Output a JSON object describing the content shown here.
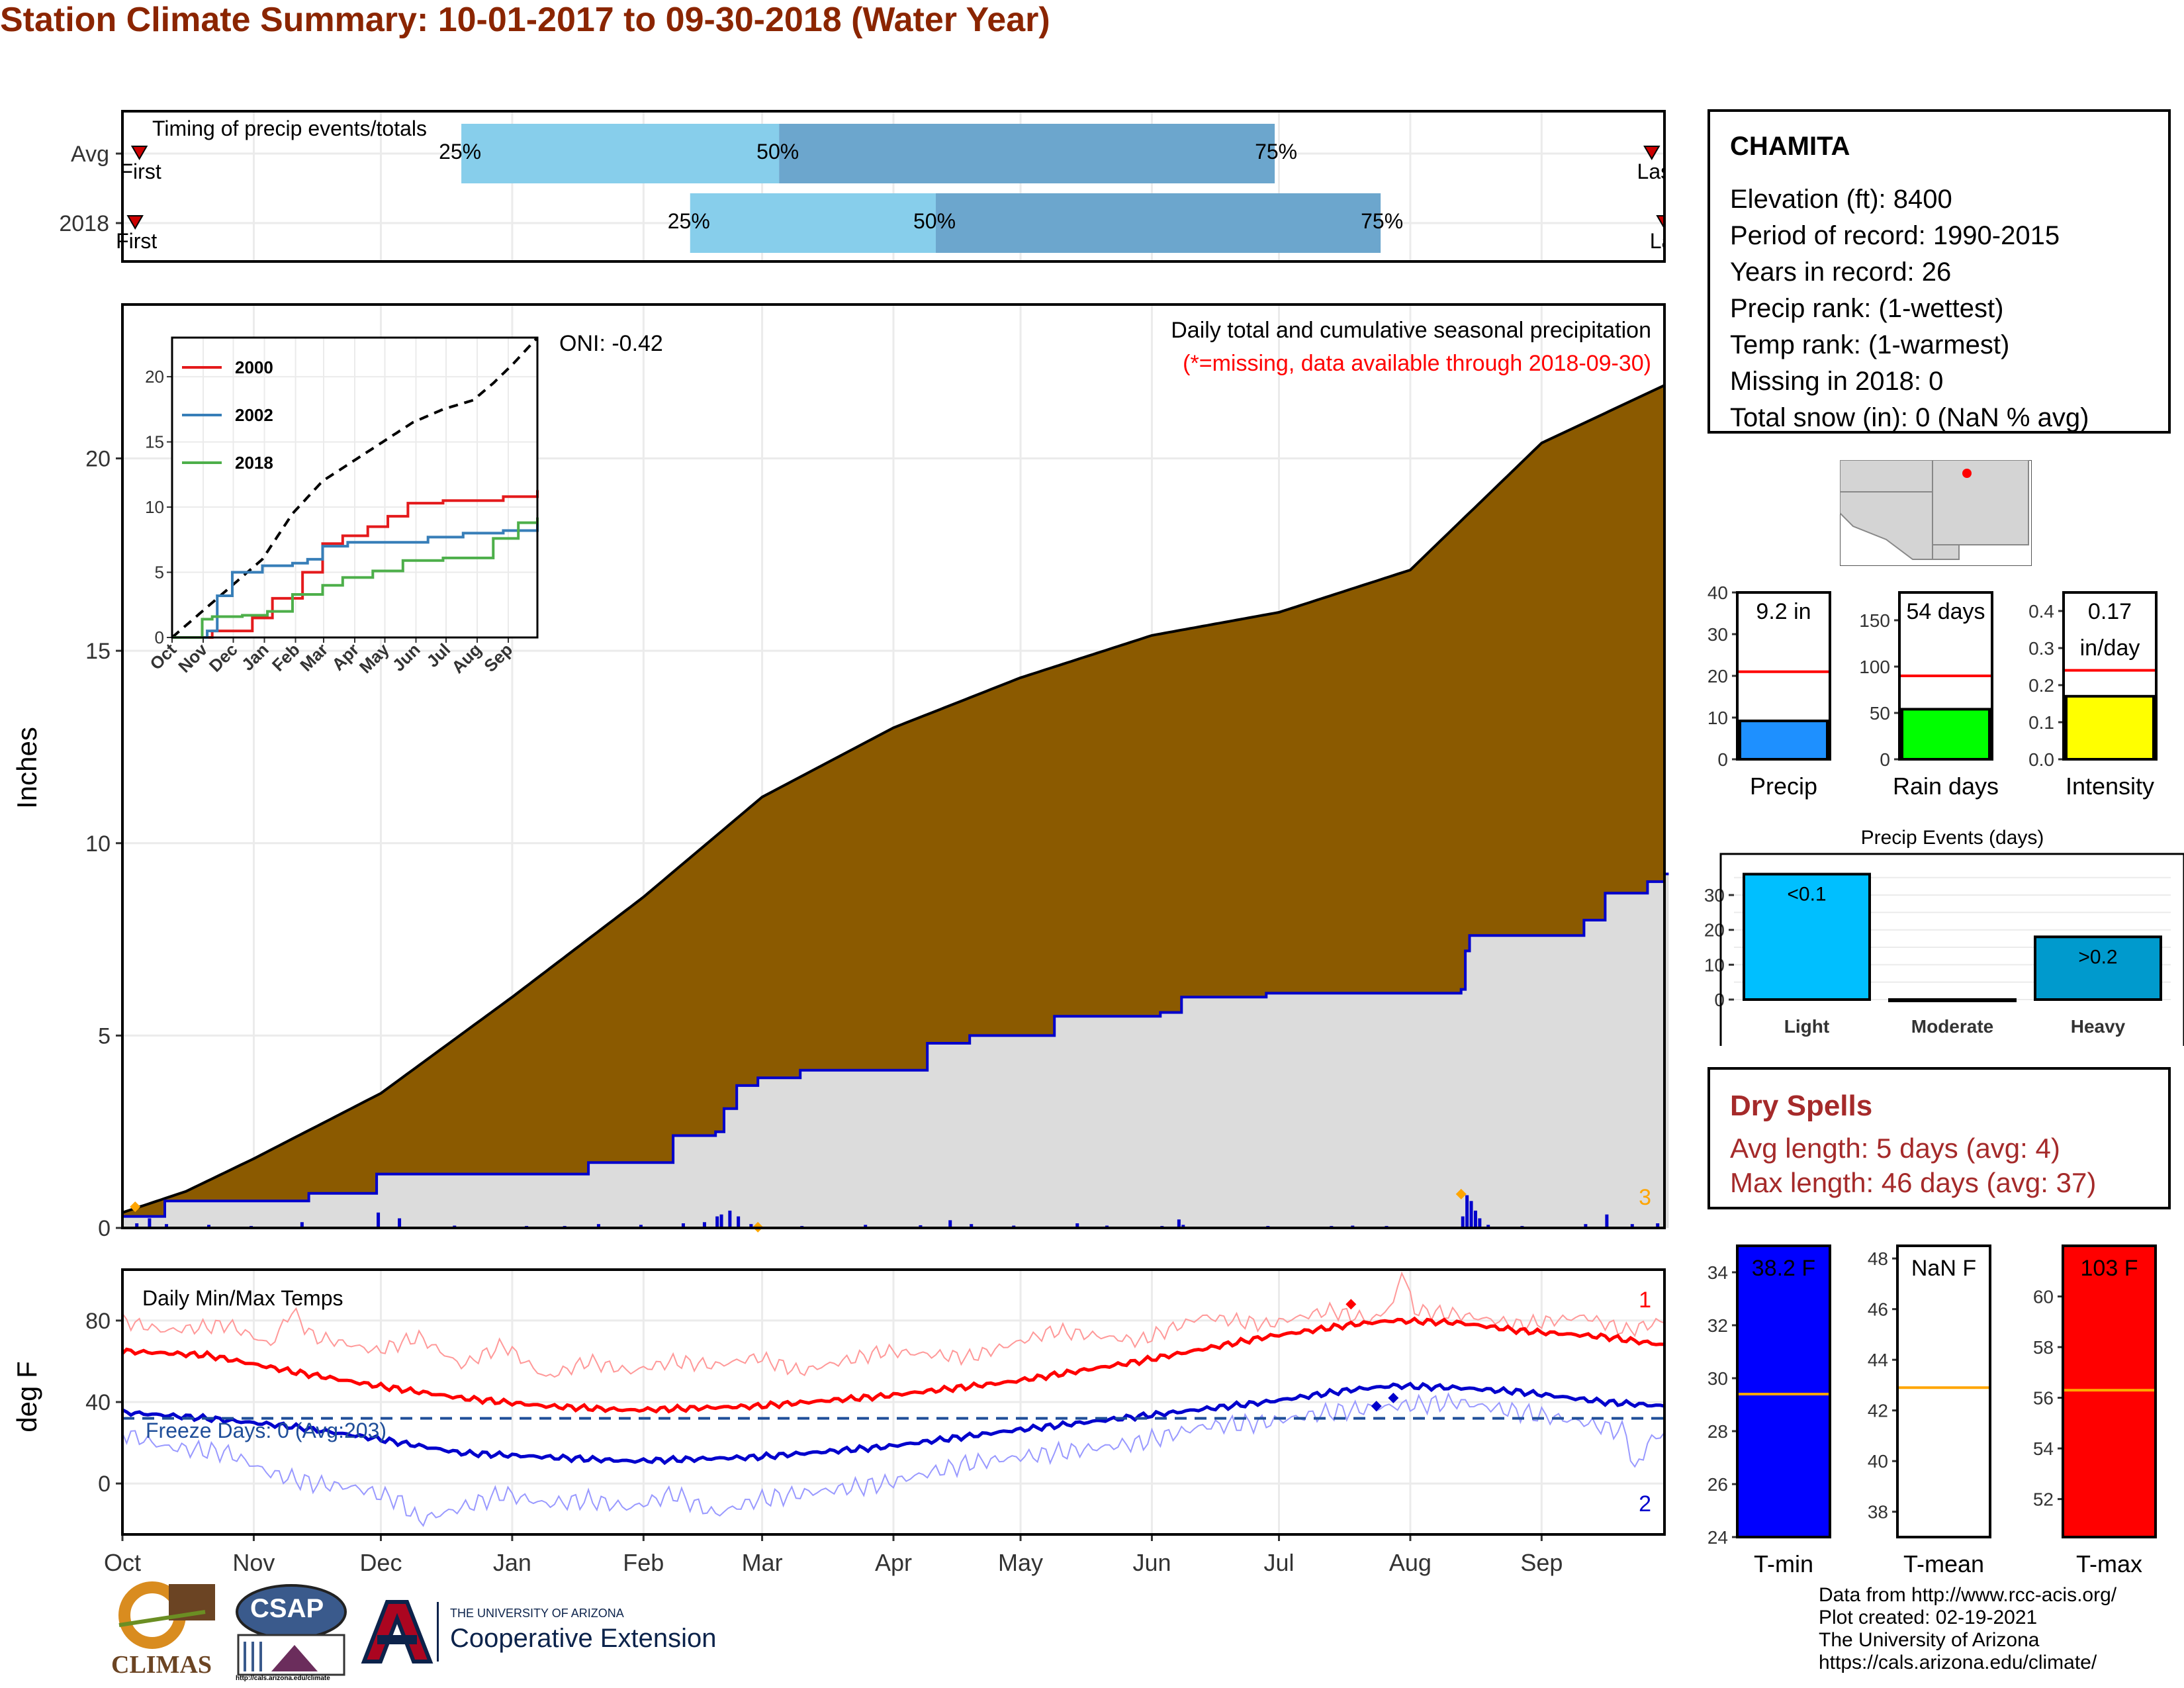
{
  "title": "Station Climate Summary: 10-01-2017 to 09-30-2018 (Water Year)",
  "months": [
    "Oct",
    "Nov",
    "Dec",
    "Jan",
    "Feb",
    "Mar",
    "Apr",
    "May",
    "Jun",
    "Jul",
    "Aug",
    "Sep"
  ],
  "timing": {
    "title": "Timing of precip events/totals",
    "rows": [
      {
        "label": "Avg",
        "first_label": "First",
        "last_label": "Last",
        "first_day": 4,
        "last_day": 361,
        "q25": 80,
        "q50": 155,
        "q75": 272
      },
      {
        "label": "2018",
        "first_label": "First",
        "last_label": "Last",
        "first_day": 3,
        "last_day": 364,
        "q25": 134,
        "q50": 192,
        "q75": 297
      }
    ],
    "q25_label": "25%",
    "q50_label": "50%",
    "q75_label": "75%",
    "colors": {
      "light": "#87CEEB",
      "dark": "#6CA6CD",
      "marker": "#CC0000"
    }
  },
  "station": {
    "name": "CHAMITA",
    "lines": [
      "Elevation (ft): 8400",
      "Period of record: 1990-2015",
      "Years in record: 26",
      "Precip rank:  (1-wettest)",
      "Temp rank:  (1-warmest)",
      "Missing in 2018: 0",
      "Total snow (in): 0 (NaN % avg)"
    ]
  },
  "dry_spells": {
    "title": "Dry Spells",
    "avg_line": "Avg length: 5 days (avg: 4)",
    "max_line": "Max length: 46 days (avg: 37)",
    "color": "#A52A2A"
  },
  "footer": {
    "lines": [
      "Data from http://www.rcc-acis.org/",
      "Plot created: 02-19-2021",
      "The University of Arizona",
      "https://cals.arizona.edu/climate/"
    ]
  },
  "logos": {
    "climas": "CLIMAS",
    "csap": "CSAP",
    "csap_url": "http://cals.arizona.edu/climate",
    "ua_small": "THE UNIVERSITY OF ARIZONA",
    "ua_big": "Cooperative Extension"
  },
  "chart_data": [
    {
      "id": "precip",
      "type": "area",
      "title": "Daily total and cumulative seasonal precipitation",
      "subtitle": "(*=missing, data available through 2018-09-30)",
      "oni": "ONI: -0.42",
      "ylabel": "Inches",
      "ylim": [
        0,
        24
      ],
      "yticks": [
        0,
        5,
        10,
        15,
        20
      ],
      "corner_label": "3",
      "colors": {
        "avg_fill": "#8B5A00",
        "obs_fill": "#DCDCDC",
        "obs_line": "#0000CC",
        "daily": "#0000CC",
        "marker": "#FFA500"
      },
      "avg_cum": {
        "day": [
          0,
          15,
          31,
          61,
          92,
          123,
          151,
          182,
          212,
          243,
          273,
          304,
          335,
          364
        ],
        "value": [
          0.4,
          0.95,
          1.8,
          3.5,
          6.0,
          8.6,
          11.2,
          13.0,
          14.3,
          15.4,
          16.0,
          17.1,
          20.4,
          21.9
        ]
      },
      "obs_cum": {
        "day": [
          0,
          10,
          20,
          30,
          44,
          60,
          110,
          130,
          140,
          142,
          145,
          150,
          160,
          190,
          200,
          220,
          245,
          250,
          270,
          290,
          305,
          316,
          317,
          318,
          330,
          345,
          350,
          360,
          364
        ],
        "value": [
          0.3,
          0.7,
          0.7,
          0.7,
          0.9,
          1.4,
          1.7,
          2.4,
          2.5,
          3.1,
          3.7,
          3.9,
          4.1,
          4.8,
          5.0,
          5.5,
          5.6,
          6.0,
          6.1,
          6.1,
          6.1,
          6.2,
          7.2,
          7.6,
          7.6,
          8.0,
          8.7,
          9.0,
          9.2
        ]
      },
      "daily": {
        "day": [
          3,
          6,
          10,
          20,
          30,
          42,
          60,
          65,
          78,
          95,
          104,
          112,
          122,
          132,
          137,
          140,
          141,
          143,
          145,
          148,
          160,
          175,
          188,
          195,
          200,
          210,
          225,
          232,
          245,
          249,
          250,
          270,
          285,
          290,
          298,
          316,
          317,
          318,
          319,
          320,
          322,
          330,
          345,
          350,
          356,
          362
        ],
        "value": [
          0.12,
          0.25,
          0.1,
          0.08,
          0.05,
          0.15,
          0.4,
          0.25,
          0.06,
          0.05,
          0.05,
          0.1,
          0.08,
          0.12,
          0.15,
          0.3,
          0.35,
          0.45,
          0.3,
          0.1,
          0.05,
          0.08,
          0.07,
          0.2,
          0.1,
          0.06,
          0.12,
          0.06,
          0.05,
          0.22,
          0.08,
          0.05,
          0.05,
          0.06,
          0.05,
          0.3,
          0.85,
          0.7,
          0.45,
          0.25,
          0.08,
          0.05,
          0.1,
          0.35,
          0.1,
          0.12
        ]
      },
      "markers": [
        {
          "day": 3,
          "value": 0.55
        },
        {
          "day": 150,
          "value": 0.02
        },
        {
          "day": 316,
          "value": 0.88
        }
      ],
      "inset": {
        "type": "line",
        "ylim": [
          0,
          23
        ],
        "yticks": [
          0,
          5,
          10,
          15,
          20
        ],
        "series": [
          {
            "name": "2000",
            "color": "#E41A1C",
            "day": [
              0,
              40,
              80,
              100,
              130,
              150,
              170,
              195,
              215,
              235,
              270,
              305,
              330,
              364
            ],
            "value": [
              0,
              0.5,
              1.5,
              3,
              5,
              7.2,
              7.8,
              8.5,
              9.3,
              10.3,
              10.5,
              10.5,
              10.8,
              11.3
            ]
          },
          {
            "name": "2002",
            "color": "#377EB8",
            "day": [
              0,
              35,
              45,
              60,
              90,
              120,
              135,
              150,
              175,
              205,
              255,
              290,
              330,
              364
            ],
            "value": [
              0,
              0.5,
              3.2,
              5.0,
              5.5,
              5.7,
              6.0,
              7.0,
              7.3,
              7.3,
              7.7,
              8.0,
              8.2,
              9.0
            ]
          },
          {
            "name": "2018",
            "color": "#4DAF4A",
            "day": [
              0,
              30,
              40,
              70,
              95,
              120,
              150,
              170,
              200,
              230,
              270,
              320,
              345,
              364
            ],
            "value": [
              0,
              1.4,
              1.6,
              1.7,
              2.0,
              3.3,
              4.0,
              4.6,
              5.1,
              5.9,
              6.1,
              7.6,
              8.8,
              9.2
            ]
          }
        ],
        "record": {
          "day": [
            0,
            30,
            60,
            90,
            120,
            150,
            180,
            210,
            240,
            270,
            300,
            320,
            340,
            364
          ],
          "value": [
            0,
            2,
            4,
            6,
            9.5,
            12,
            13.5,
            15,
            16.5,
            17.5,
            18.2,
            19.5,
            21,
            23
          ]
        }
      }
    },
    {
      "id": "temps",
      "type": "line",
      "title": "Daily Min/Max Temps",
      "ylabel": "deg F",
      "ylim": [
        -25,
        105
      ],
      "yticks": [
        0,
        40,
        80
      ],
      "freeze_label": "Freeze Days: 0 (Avg:203)",
      "freeze_line": 32,
      "count_max": "1",
      "count_min": "2",
      "colors": {
        "max": "#FF0000",
        "min": "#0000CC"
      },
      "avg_max": {
        "day": [
          0,
          20,
          40,
          60,
          80,
          100,
          120,
          150,
          180,
          210,
          240,
          270,
          290,
          300,
          315,
          330,
          350,
          364
        ],
        "value": [
          65,
          63,
          55,
          48,
          42,
          38,
          36,
          38,
          43,
          50,
          60,
          72,
          78,
          80,
          79,
          75,
          72,
          68
        ]
      },
      "avg_min": {
        "day": [
          0,
          20,
          40,
          60,
          80,
          100,
          120,
          150,
          180,
          210,
          240,
          270,
          290,
          300,
          315,
          330,
          350,
          364
        ],
        "value": [
          35,
          32,
          28,
          22,
          15,
          13,
          11,
          13,
          18,
          26,
          33,
          40,
          46,
          48,
          47,
          45,
          40,
          38
        ]
      },
      "obs_max": {
        "day": [
          0,
          10,
          25,
          35,
          40,
          45,
          50,
          60,
          70,
          80,
          90,
          100,
          110,
          120,
          130,
          140,
          150,
          160,
          180,
          200,
          220,
          240,
          255,
          270,
          285,
          295,
          300,
          302,
          305,
          315,
          330,
          345,
          355,
          364
        ],
        "value": [
          80,
          75,
          78,
          68,
          85,
          72,
          70,
          65,
          72,
          58,
          68,
          52,
          60,
          55,
          60,
          58,
          62,
          55,
          65,
          62,
          75,
          70,
          82,
          78,
          85,
          80,
          88,
          105,
          85,
          83,
          78,
          82,
          75,
          80
        ]
      },
      "obs_min": {
        "day": [
          0,
          10,
          25,
          35,
          45,
          55,
          65,
          70,
          80,
          90,
          100,
          110,
          120,
          130,
          140,
          150,
          160,
          180,
          200,
          220,
          240,
          255,
          270,
          285,
          300,
          315,
          330,
          345,
          355,
          357,
          360,
          364
        ],
        "value": [
          25,
          18,
          15,
          5,
          0,
          -2,
          -8,
          -18,
          -12,
          -5,
          -10,
          -8,
          -12,
          -5,
          -15,
          -8,
          -5,
          0,
          10,
          15,
          20,
          28,
          30,
          35,
          38,
          40,
          35,
          30,
          25,
          5,
          20,
          25
        ]
      },
      "markers": [
        {
          "day": 290,
          "value": 88,
          "color": "#FF0000"
        },
        {
          "day": 296,
          "value": 38,
          "color": "#0000CC"
        },
        {
          "day": 300,
          "value": 42,
          "color": "#0000CC"
        }
      ]
    },
    {
      "id": "precip-bars",
      "type": "bar",
      "categories": [
        "Precip",
        "Rain days",
        "Intensity"
      ],
      "values": [
        9.2,
        54,
        0.17
      ],
      "value_labels": [
        "9.2 in",
        "54 days",
        "0.17\nin/day"
      ],
      "averages": [
        21,
        90,
        0.24
      ],
      "ylims": [
        [
          0,
          40
        ],
        [
          0,
          180
        ],
        [
          0,
          0.45
        ]
      ],
      "yticks": [
        [
          0,
          10,
          20,
          30,
          40
        ],
        [
          0,
          50,
          100,
          150
        ],
        [
          0.0,
          0.1,
          0.2,
          0.3,
          0.4
        ]
      ],
      "colors": [
        "#1E90FF",
        "#00FF00",
        "#FFFF00"
      ]
    },
    {
      "id": "events",
      "type": "bar",
      "title": "Precip Events (days)",
      "categories": [
        "Light",
        "Moderate",
        "Heavy"
      ],
      "values": [
        36,
        0,
        18
      ],
      "bar_labels": [
        "<0.1",
        "",
        ">0.2"
      ],
      "ylim": [
        0,
        38
      ],
      "yticks": [
        0,
        10,
        20,
        30
      ],
      "colors": [
        "#00BFFF",
        "#00BFFF",
        "#009ACD"
      ]
    },
    {
      "id": "temp-bars",
      "type": "bar",
      "categories": [
        "T-min",
        "T-mean",
        "T-max"
      ],
      "value_labels": [
        "38.2 F",
        "NaN F",
        "103 F"
      ],
      "averages": [
        29.4,
        42.9,
        56.3
      ],
      "ylims": [
        [
          24,
          35
        ],
        [
          37,
          48.5
        ],
        [
          50.5,
          62
        ]
      ],
      "yticks": [
        [
          24,
          26,
          28,
          30,
          32,
          34
        ],
        [
          38,
          40,
          42,
          44,
          46,
          48
        ],
        [
          52,
          54,
          56,
          58,
          60
        ]
      ],
      "colors": [
        "#0000FF",
        "#FFFFFF",
        "#FF0000"
      ],
      "avg_color": "#FFA500"
    }
  ]
}
